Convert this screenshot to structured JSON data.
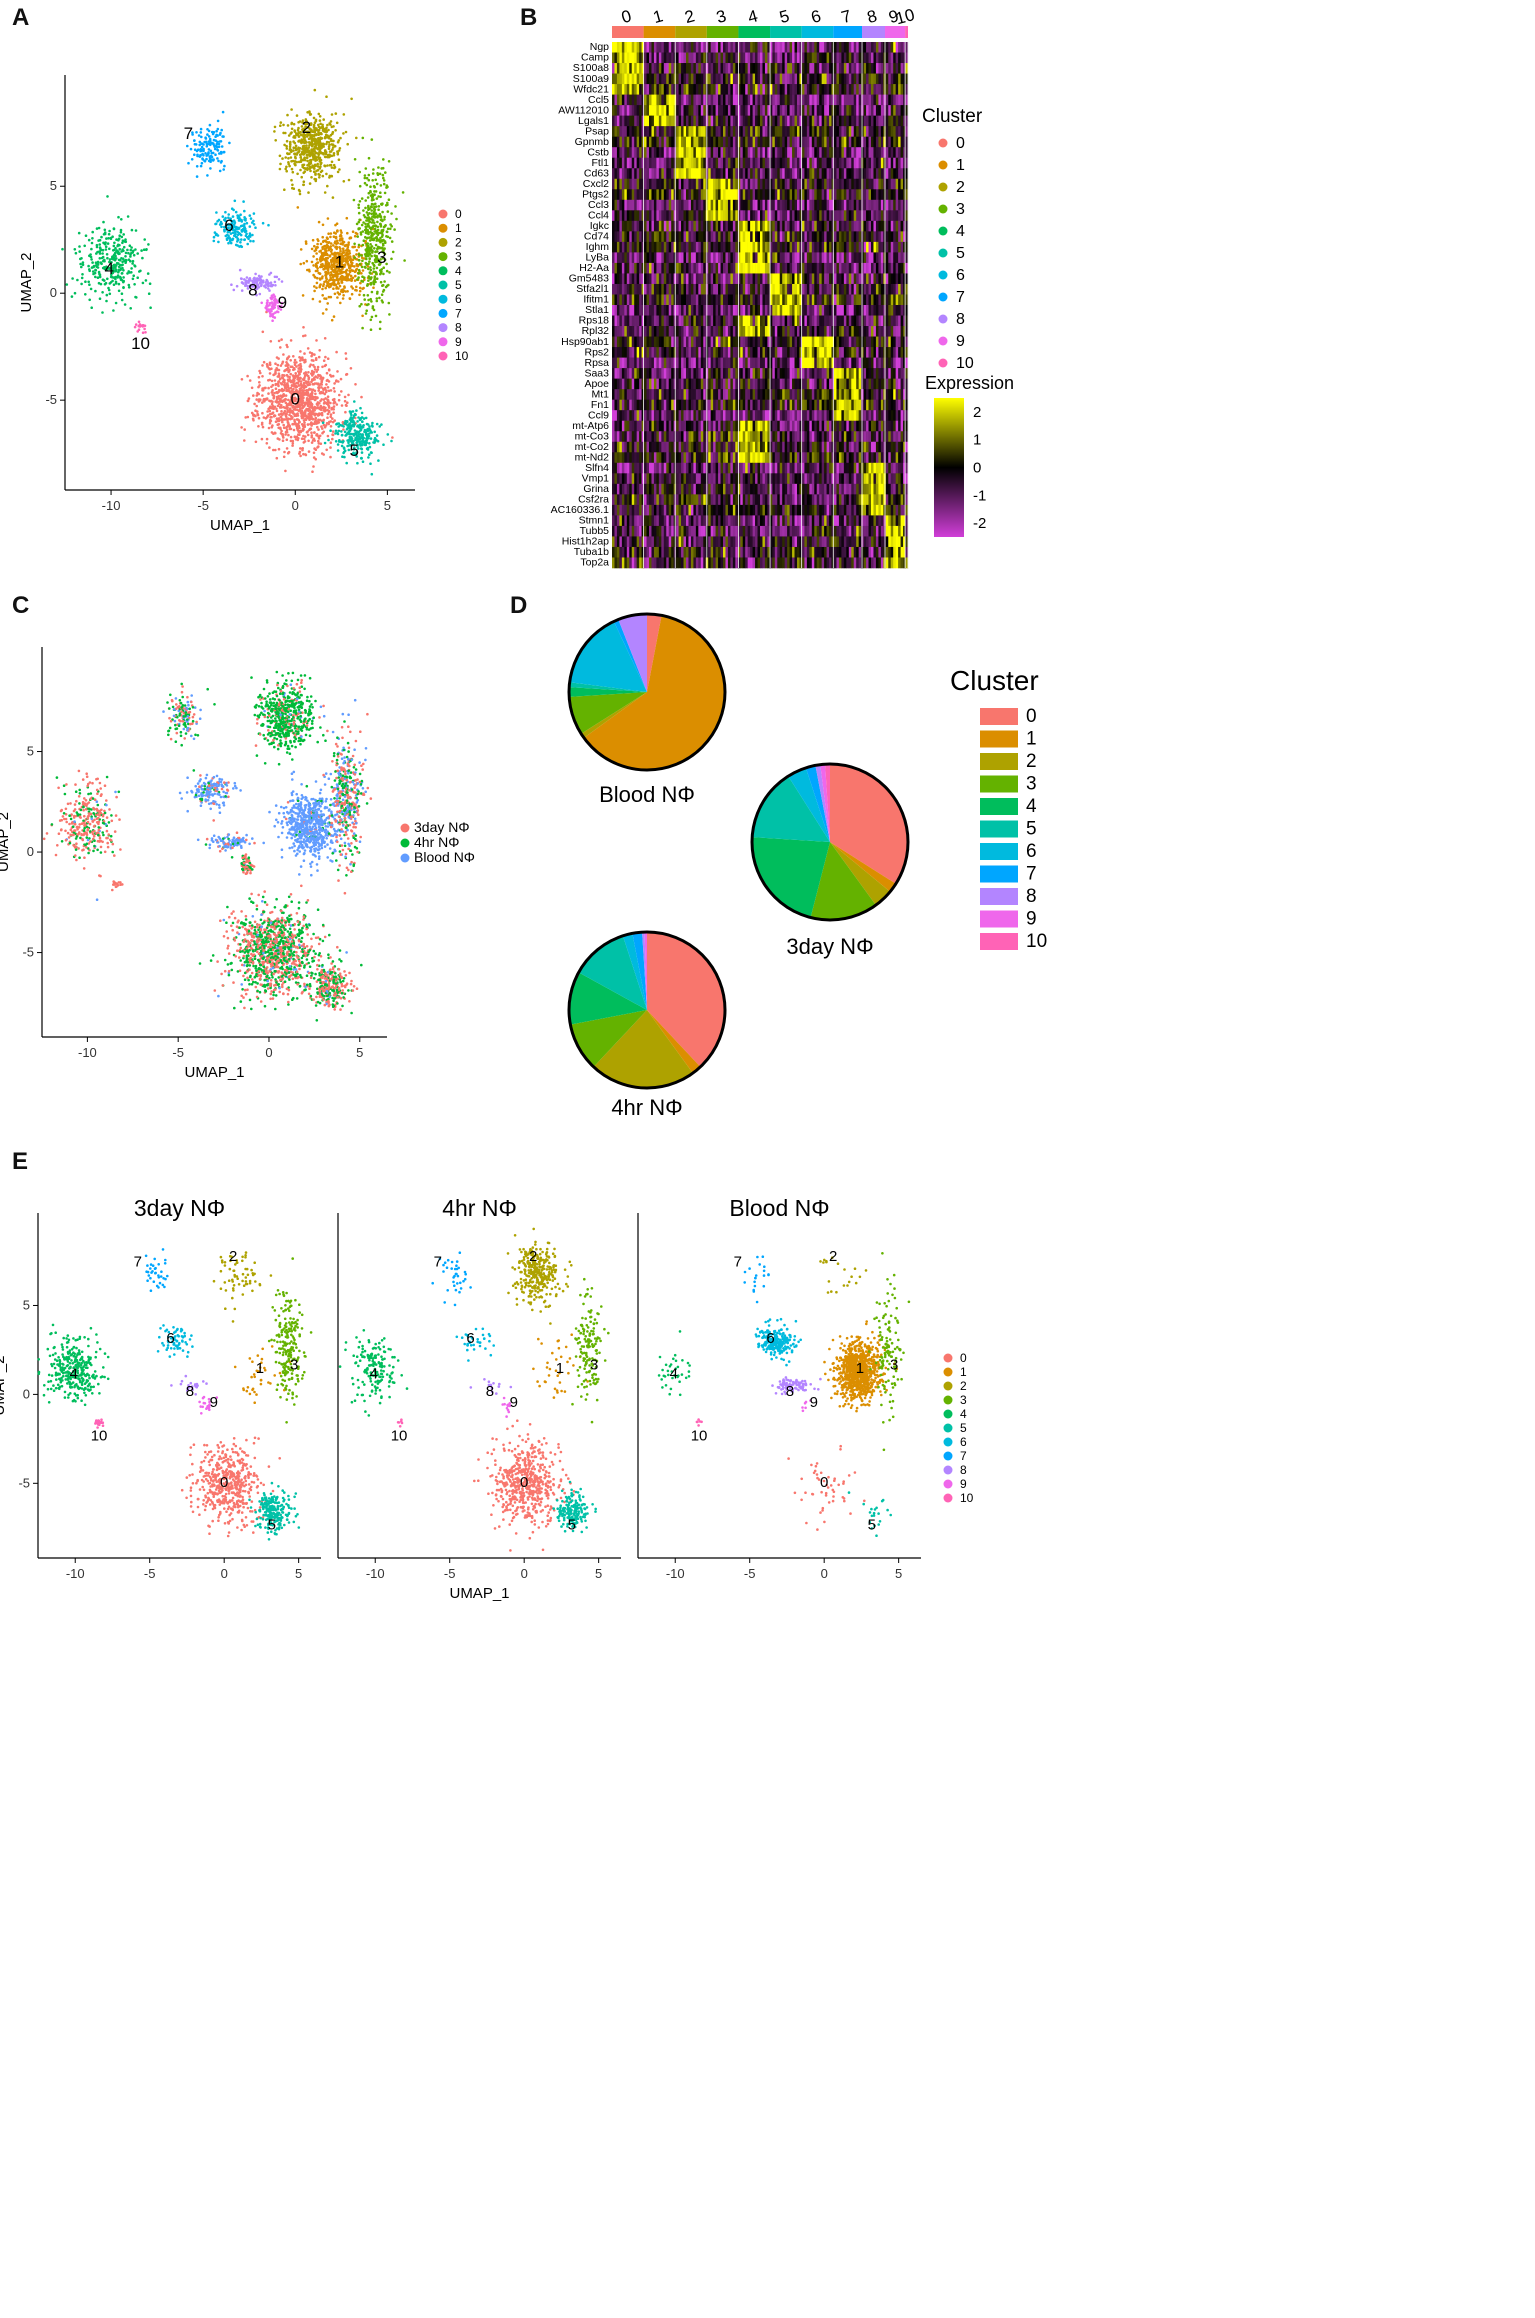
{
  "panel_labels": [
    "A",
    "B",
    "C",
    "D",
    "E"
  ],
  "chart_data": [
    {
      "id": "A",
      "type": "scatter",
      "title": "",
      "xlabel": "UMAP_1",
      "ylabel": "UMAP_2",
      "xlim": [
        -12.5,
        6.5
      ],
      "ylim": [
        -9.2,
        10.2
      ],
      "xticks": [
        -10,
        -5,
        0,
        5
      ],
      "yticks": [
        -5,
        0,
        5
      ],
      "legend_title": "",
      "legend": [
        "0",
        "1",
        "2",
        "3",
        "4",
        "5",
        "6",
        "7",
        "8",
        "9",
        "10"
      ],
      "clusters": [
        {
          "name": "0",
          "label": "0",
          "label_pos": [
            0.0,
            -5.2
          ],
          "center": [
            0.2,
            -5.0
          ],
          "spread": [
            2.2,
            2.2
          ],
          "n": 2000
        },
        {
          "name": "1",
          "label": "1",
          "label_pos": [
            2.4,
            1.2
          ],
          "center": [
            2.3,
            1.3
          ],
          "spread": [
            1.4,
            1.6
          ],
          "n": 1100
        },
        {
          "name": "2",
          "label": "2",
          "label_pos": [
            0.6,
            7.5
          ],
          "center": [
            0.9,
            6.8
          ],
          "spread": [
            1.5,
            1.6
          ],
          "n": 1000
        },
        {
          "name": "3",
          "label": "3",
          "label_pos": [
            4.7,
            1.4
          ],
          "center": [
            4.3,
            2.6
          ],
          "spread": [
            0.9,
            3.2
          ],
          "n": 800
        },
        {
          "name": "4",
          "label": "4",
          "label_pos": [
            -10.1,
            0.9
          ],
          "center": [
            -10.0,
            1.4
          ],
          "spread": [
            1.7,
            1.8
          ],
          "n": 600
        },
        {
          "name": "5",
          "label": "5",
          "label_pos": [
            3.2,
            -7.6
          ],
          "center": [
            3.3,
            -6.6
          ],
          "spread": [
            1.1,
            1.1
          ],
          "n": 500
        },
        {
          "name": "6",
          "label": "6",
          "label_pos": [
            -3.6,
            2.9
          ],
          "center": [
            -3.2,
            3.0
          ],
          "spread": [
            1.1,
            0.8
          ],
          "n": 300
        },
        {
          "name": "7",
          "label": "7",
          "label_pos": [
            -5.8,
            7.2
          ],
          "center": [
            -4.7,
            6.8
          ],
          "spread": [
            0.9,
            1.1
          ],
          "n": 250
        },
        {
          "name": "8",
          "label": "8",
          "label_pos": [
            -2.3,
            -0.1
          ],
          "center": [
            -2.1,
            0.5
          ],
          "spread": [
            1.2,
            0.4
          ],
          "n": 180
        },
        {
          "name": "9",
          "label": "9",
          "label_pos": [
            -0.7,
            -0.7
          ],
          "center": [
            -1.2,
            -0.6
          ],
          "spread": [
            0.4,
            0.5
          ],
          "n": 120
        },
        {
          "name": "10",
          "label": "10",
          "label_pos": [
            -8.4,
            -2.6
          ],
          "center": [
            -8.4,
            -1.6
          ],
          "spread": [
            0.3,
            0.2
          ],
          "n": 30
        }
      ]
    },
    {
      "id": "B",
      "type": "heatmap",
      "title": "",
      "column_groups": [
        "0",
        "1",
        "2",
        "3",
        "4",
        "5",
        "6",
        "7",
        "8",
        "9",
        "10"
      ],
      "column_group_widths": [
        0.11,
        0.11,
        0.11,
        0.11,
        0.11,
        0.11,
        0.11,
        0.1,
        0.08,
        0.07,
        0.01
      ],
      "genes": [
        "Ngp",
        "Camp",
        "S100a8",
        "S100a9",
        "Wfdc21",
        "Ccl5",
        "AW112010",
        "Lgals1",
        "Psap",
        "Gpnmb",
        "Cstb",
        "Ftl1",
        "Cd63",
        "Cxcl2",
        "Ptgs2",
        "Ccl3",
        "Ccl4",
        "Igkc",
        "Cd74",
        "Ighm",
        "LyBa",
        "H2-Aa",
        "Gm5483",
        "Stfa2l1",
        "Ifitm1",
        "Stla1",
        "Rps18",
        "Rpl32",
        "Hsp90ab1",
        "Rps2",
        "Rpsa",
        "Saa3",
        "Apoe",
        "Mt1",
        "Fn1",
        "Ccl9",
        "mt-Atp6",
        "mt-Co3",
        "mt-Co2",
        "mt-Nd2",
        "Slfn4",
        "Vmp1",
        "Grina",
        "Csf2ra",
        "AC160336.1",
        "Stmn1",
        "Tubb5",
        "Hist1h2ap",
        "Tuba1b",
        "Top2a"
      ],
      "gene_marker_cluster": [
        0,
        0,
        0,
        0,
        0,
        1,
        1,
        1,
        2,
        2,
        2,
        2,
        2,
        3,
        3,
        3,
        3,
        4,
        4,
        4,
        4,
        4,
        5,
        5,
        5,
        5,
        4,
        4,
        6,
        6,
        6,
        7,
        7,
        7,
        7,
        7,
        4,
        4,
        4,
        4,
        8,
        8,
        8,
        8,
        8,
        9,
        9,
        9,
        9,
        9
      ],
      "legend_title": "Cluster",
      "legend": [
        "0",
        "1",
        "2",
        "3",
        "4",
        "5",
        "6",
        "7",
        "8",
        "9",
        "10"
      ],
      "colorbar_title": "Expression",
      "colorbar_ticks": [
        "2",
        "1",
        "0",
        "-1",
        "-2"
      ],
      "colorbar_range": [
        -2.5,
        2.5
      ]
    },
    {
      "id": "C",
      "type": "scatter",
      "title": "",
      "xlabel": "UMAP_1",
      "ylabel": "UMAP_2",
      "xlim": [
        -12.5,
        6.5
      ],
      "ylim": [
        -9.2,
        10.2
      ],
      "xticks": [
        -10,
        -5,
        0,
        5
      ],
      "yticks": [
        -5,
        0,
        5
      ],
      "legend": [
        "3day NΦ",
        "4hr NΦ",
        "Blood NΦ"
      ],
      "groups": [
        {
          "name": "3day NΦ",
          "cluster_fractions": [
            0.34,
            0.02,
            0.04,
            0.14,
            0.22,
            0.15,
            0.04,
            0.02,
            0.01,
            0.01,
            0.01
          ]
        },
        {
          "name": "4hr NΦ",
          "cluster_fractions": [
            0.38,
            0.02,
            0.22,
            0.1,
            0.11,
            0.12,
            0.02,
            0.02,
            0.005,
            0.005,
            0.0
          ]
        },
        {
          "name": "Blood NΦ",
          "cluster_fractions": [
            0.03,
            0.62,
            0.01,
            0.08,
            0.02,
            0.01,
            0.16,
            0.01,
            0.06,
            0.0,
            0.0
          ]
        }
      ]
    },
    {
      "id": "D",
      "type": "pie",
      "title": "",
      "legend_title": "Cluster",
      "legend": [
        "0",
        "1",
        "2",
        "3",
        "4",
        "5",
        "6",
        "7",
        "8",
        "9",
        "10"
      ],
      "pies": [
        {
          "name": "Blood NΦ",
          "values": [
            0.03,
            0.62,
            0.01,
            0.08,
            0.02,
            0.01,
            0.16,
            0.01,
            0.06,
            0.0,
            0.0
          ]
        },
        {
          "name": "3day NΦ",
          "values": [
            0.34,
            0.02,
            0.04,
            0.14,
            0.22,
            0.15,
            0.04,
            0.02,
            0.01,
            0.01,
            0.01
          ]
        },
        {
          "name": "4hr NΦ",
          "values": [
            0.38,
            0.02,
            0.22,
            0.1,
            0.11,
            0.12,
            0.02,
            0.02,
            0.005,
            0.005,
            0.0
          ]
        }
      ]
    },
    {
      "id": "E",
      "type": "scatter",
      "title": "",
      "xlabel": "UMAP_1",
      "ylabel": "UMAP_2",
      "xlim": [
        -12.5,
        6.5
      ],
      "ylim": [
        -9.2,
        10.2
      ],
      "xticks": [
        -10,
        -5,
        0,
        5
      ],
      "yticks": [
        -5,
        0,
        5
      ],
      "legend": [
        "0",
        "1",
        "2",
        "3",
        "4",
        "5",
        "6",
        "7",
        "8",
        "9",
        "10"
      ],
      "facets": [
        {
          "title": "3day NΦ",
          "cluster_fractions": [
            0.34,
            0.02,
            0.04,
            0.14,
            0.22,
            0.15,
            0.04,
            0.02,
            0.01,
            0.01,
            0.01
          ]
        },
        {
          "title": "4hr NΦ",
          "cluster_fractions": [
            0.38,
            0.02,
            0.22,
            0.1,
            0.11,
            0.12,
            0.02,
            0.02,
            0.005,
            0.005,
            0.0
          ]
        },
        {
          "title": "Blood NΦ",
          "cluster_fractions": [
            0.03,
            0.62,
            0.01,
            0.08,
            0.02,
            0.01,
            0.16,
            0.01,
            0.06,
            0.0,
            0.0
          ]
        }
      ]
    }
  ],
  "colors": {
    "clusters": [
      "#F8766D",
      "#DB8E00",
      "#AEA200",
      "#64B200",
      "#00BD5C",
      "#00C1A7",
      "#00BADE",
      "#00A6FF",
      "#B385FF",
      "#EF67EB",
      "#FF63B6"
    ],
    "groups": [
      "#F8766D",
      "#00BA38",
      "#619CFF"
    ],
    "heat_low": "#D13ED8",
    "heat_mid": "#000000",
    "heat_high": "#FFFF00"
  }
}
